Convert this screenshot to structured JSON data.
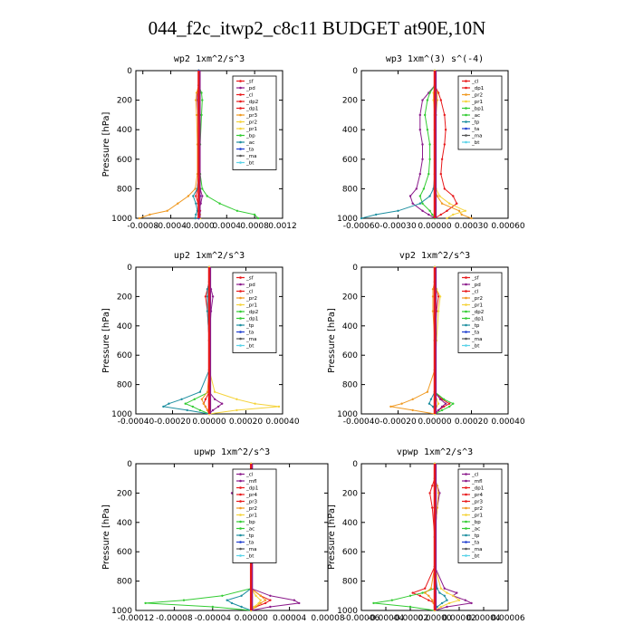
{
  "figure_title": "044_f2c_itwp2_c8c11  BUDGET at90E,10N",
  "colors": {
    "red": "#e8191b",
    "purple": "#8b1a8b",
    "orange": "#f09a22",
    "yellow": "#f5d33a",
    "green": "#33cc33",
    "teal": "#1e8fa0",
    "blue": "#1f3ed0",
    "lightblue": "#5ad3e8",
    "gray": "#555555"
  },
  "chart_data": [
    {
      "type": "line",
      "title": "wp2   1xm^2/s^3",
      "ylabel": "Pressure  [hPa]",
      "ylim": [
        1000,
        0
      ],
      "xlim": [
        -0.0009,
        0.0012
      ],
      "xticks": [
        -0.0008,
        -0.0004,
        0,
        0.0004,
        0.0008,
        0.0012
      ],
      "xtick_labels": [
        "-0.0008",
        "-0.0004",
        "-0.0000",
        "0.0004",
        "0.0008",
        "0.0012"
      ],
      "yticks": [
        0,
        200,
        400,
        600,
        800,
        1000
      ],
      "ytick_labels": [
        "0",
        "200",
        "400",
        "600",
        "800",
        "1000"
      ],
      "legend": [
        "_sf",
        "_pd",
        "_cl",
        "_dp2",
        "_dp1",
        "_pr3",
        "_pr2",
        "_pr1",
        "_bp",
        "_ac",
        "_ta",
        "_ma",
        "_bt"
      ],
      "legend_colors": [
        "red",
        "purple",
        "red",
        "red",
        "red",
        "orange",
        "yellow",
        "yellow",
        "green",
        "teal",
        "blue",
        "gray",
        "lightblue"
      ],
      "levels": [
        0,
        100,
        150,
        200,
        300,
        500,
        700,
        800,
        850,
        900,
        950,
        975,
        1000
      ],
      "series": [
        {
          "values": [
            0,
            0,
            0,
            1e-05,
            1e-05,
            1e-05,
            0,
            -2e-05,
            -4e-05,
            -1e-05,
            2e-05,
            1e-05,
            0
          ]
        },
        {
          "values": [
            0,
            0,
            -2e-05,
            -2e-05,
            -1e-05,
            0,
            0,
            2e-05,
            5e-05,
            3e-05,
            0,
            0,
            0
          ]
        },
        {
          "values": [
            0,
            0,
            4e-05,
            5e-05,
            4e-05,
            2e-05,
            2e-05,
            5e-05,
            0.00012,
            0.0003,
            0.00055,
            0.0008,
            0.00085
          ]
        },
        {
          "values": [
            0,
            0,
            -3e-05,
            -4e-05,
            -3e-05,
            -2e-05,
            -2e-05,
            -5e-05,
            -0.00015,
            -0.0003,
            -0.00045,
            -0.0007,
            -0.00085
          ]
        },
        {
          "values": [
            0,
            0,
            0,
            0,
            0,
            0,
            0,
            -2e-05,
            -8e-05,
            -4e-05,
            -2e-05,
            -4e-05,
            -5e-05
          ]
        },
        {
          "values": [
            0,
            0,
            0,
            0,
            0,
            0,
            0,
            0,
            0,
            0,
            1e-05,
            2e-05,
            2e-05
          ]
        },
        {
          "values": [
            0,
            0,
            0,
            0,
            0,
            0,
            0,
            1e-05,
            2e-05,
            0,
            0,
            0,
            0
          ]
        }
      ]
    },
    {
      "type": "line",
      "title": "wp3   1xm^(3) s^(-4)",
      "ylabel": "",
      "ylim": [
        1000,
        0
      ],
      "xlim": [
        -0.0006,
        0.0006
      ],
      "xticks": [
        -0.0006,
        -0.0003,
        0,
        0.0003,
        0.0006
      ],
      "xtick_labels": [
        "-0.00060",
        "-0.00030",
        "0.00000",
        "0.00030",
        "0.00060"
      ],
      "yticks": [
        0,
        200,
        400,
        600,
        800,
        1000
      ],
      "ytick_labels": [
        "0",
        "200",
        "400",
        "600",
        "800",
        "1000"
      ],
      "legend": [
        "_cl",
        "_dp1",
        "_pr2",
        "_pr1",
        "_bp1",
        "_ac",
        "_tp",
        "_ta",
        "_ma",
        "_bt"
      ],
      "legend_colors": [
        "red",
        "red",
        "orange",
        "yellow",
        "green",
        "green",
        "teal",
        "blue",
        "gray",
        "lightblue"
      ],
      "levels": [
        0,
        100,
        150,
        200,
        300,
        400,
        500,
        600,
        700,
        800,
        850,
        900,
        950,
        975,
        1000
      ],
      "series": [
        {
          "values": [
            0,
            0,
            3e-05,
            5e-05,
            8e-05,
            9e-05,
            8e-05,
            6e-05,
            5e-05,
            8e-05,
            0.00015,
            0.00018,
            0.0001,
            5e-05,
            0
          ]
        },
        {
          "values": [
            0,
            0,
            -5e-05,
            -0.0001,
            -0.00012,
            -0.00012,
            -0.0001,
            -0.0001,
            -0.00012,
            -0.00015,
            -0.0002,
            -0.00018,
            -0.0001,
            -5e-05,
            0
          ]
        },
        {
          "values": [
            0,
            0,
            -4e-05,
            -6e-05,
            -8e-05,
            -6e-05,
            -4e-05,
            -4e-05,
            -5e-05,
            -9e-05,
            -0.00012,
            -0.0001,
            -4e-05,
            -2e-05,
            0
          ]
        },
        {
          "values": [
            0,
            0,
            2e-05,
            2e-05,
            1e-05,
            0,
            0,
            0,
            0,
            0,
            2e-05,
            6e-05,
            0.0002,
            0.00022,
            0.0003
          ]
        },
        {
          "values": [
            0,
            0,
            0,
            0,
            0,
            0,
            0,
            0,
            0,
            -1e-05,
            -4e-05,
            -0.00012,
            -0.0003,
            -0.00048,
            -0.0006
          ]
        },
        {
          "values": [
            0,
            0,
            -1e-05,
            -1e-05,
            0,
            0,
            0,
            0,
            0,
            1e-05,
            4e-05,
            0.00012,
            0.00025,
            0.00015,
            0.0001
          ]
        }
      ]
    },
    {
      "type": "line",
      "title": "up2   1xm^2/s^3",
      "ylabel": "Pressure  [hPa]",
      "ylim": [
        1000,
        0
      ],
      "xlim": [
        -0.0004,
        0.0004
      ],
      "xticks": [
        -0.0004,
        -0.0002,
        0,
        0.0002,
        0.0004
      ],
      "xtick_labels": [
        "-0.00040",
        "-0.00020",
        "0.00000",
        "0.00020",
        "0.00040"
      ],
      "yticks": [
        0,
        200,
        400,
        600,
        800,
        1000
      ],
      "ytick_labels": [
        "0",
        "200",
        "400",
        "600",
        "800",
        "1000"
      ],
      "legend": [
        "_sf",
        "_pd",
        "_cl",
        "_pr2",
        "_pr1",
        "_dp2",
        "_dp1",
        "_tp",
        "_ta",
        "_ma",
        "_bt"
      ],
      "legend_colors": [
        "red",
        "purple",
        "red",
        "orange",
        "yellow",
        "green",
        "green",
        "teal",
        "blue",
        "gray",
        "lightblue"
      ],
      "levels": [
        0,
        100,
        150,
        200,
        300,
        500,
        700,
        850,
        900,
        930,
        950,
        975,
        1000
      ],
      "series": [
        {
          "values": [
            0,
            0,
            -1e-05,
            -2e-05,
            -1e-05,
            0,
            0,
            0,
            -2e-05,
            -3e-05,
            -2e-05,
            -1e-05,
            0
          ]
        },
        {
          "values": [
            0,
            0,
            1e-05,
            2e-05,
            1e-05,
            0,
            0,
            0,
            3e-05,
            7e-05,
            5e-05,
            2e-05,
            0
          ]
        },
        {
          "values": [
            0,
            0,
            0,
            0,
            0,
            0,
            0,
            0,
            -8e-05,
            -0.00013,
            -9e-05,
            -5e-05,
            0
          ]
        },
        {
          "values": [
            0,
            0,
            0,
            0,
            0,
            0,
            0,
            -1e-05,
            -4e-05,
            -3e-05,
            -2e-05,
            -1e-05,
            0
          ]
        },
        {
          "values": [
            0,
            0,
            -1e-05,
            -1e-05,
            -1e-05,
            0,
            0,
            -5e-05,
            -0.00015,
            -0.00022,
            -0.00025,
            -0.00012,
            0
          ]
        },
        {
          "values": [
            0,
            0,
            0,
            0,
            0,
            0,
            0,
            3e-05,
            0.00015,
            0.00025,
            0.00038,
            0.00015,
            0
          ]
        }
      ]
    },
    {
      "type": "line",
      "title": "vp2   1xm^2/s^3",
      "ylabel": "Pressure  [hPa]",
      "ylim": [
        1000,
        0
      ],
      "xlim": [
        -0.0004,
        0.0004
      ],
      "xticks": [
        -0.0004,
        -0.0002,
        0,
        0.0002,
        0.0004
      ],
      "xtick_labels": [
        "-0.00040",
        "-0.00020",
        "0.00000",
        "0.00020",
        "0.00040"
      ],
      "yticks": [
        0,
        200,
        400,
        600,
        800,
        1000
      ],
      "ytick_labels": [
        "0",
        "200",
        "400",
        "600",
        "800",
        "1000"
      ],
      "legend": [
        "_sf",
        "_pd",
        "_cl",
        "_pr2",
        "_pr1",
        "_dp2",
        "_dp1",
        "_tp",
        "_ta",
        "_ma",
        "_bt"
      ],
      "legend_colors": [
        "red",
        "purple",
        "red",
        "orange",
        "yellow",
        "green",
        "green",
        "teal",
        "blue",
        "gray",
        "lightblue"
      ],
      "levels": [
        0,
        100,
        150,
        200,
        300,
        500,
        700,
        850,
        900,
        930,
        950,
        975,
        1000
      ],
      "series": [
        {
          "values": [
            0,
            0,
            1e-05,
            2e-05,
            1e-05,
            0,
            0,
            0,
            4e-05,
            8e-05,
            5e-05,
            2e-05,
            0
          ]
        },
        {
          "values": [
            0,
            0,
            0,
            0,
            0,
            0,
            0,
            0,
            3e-05,
            6e-05,
            4e-05,
            2e-05,
            0
          ]
        },
        {
          "values": [
            0,
            0,
            0,
            0,
            0,
            0,
            0,
            0,
            5e-05,
            0.0001,
            8e-05,
            4e-05,
            0
          ]
        },
        {
          "values": [
            0,
            0,
            -1e-05,
            -1e-05,
            -1e-05,
            0,
            0,
            -4e-05,
            -0.00012,
            -0.00018,
            -0.00024,
            -0.00012,
            0
          ]
        },
        {
          "values": [
            0,
            0,
            0,
            0,
            0,
            0,
            0,
            0,
            -2e-05,
            -3e-05,
            -1e-05,
            0,
            0
          ]
        },
        {
          "values": [
            0,
            0,
            1e-05,
            3e-05,
            2e-05,
            1e-05,
            0,
            0,
            1e-05,
            2e-05,
            1e-05,
            0,
            0
          ]
        }
      ]
    },
    {
      "type": "line",
      "title": "upwp   1xm^2/s^3",
      "ylabel": "Pressure  [hPa]",
      "ylim": [
        1000,
        0
      ],
      "xlim": [
        -0.00012,
        8e-05
      ],
      "xticks": [
        -0.00012,
        -8e-05,
        -4e-05,
        0,
        4e-05,
        8e-05
      ],
      "xtick_labels": [
        "-0.00012",
        "-0.00008",
        "-0.00004",
        "0.00000",
        "0.00004",
        "0.00008"
      ],
      "yticks": [
        0,
        200,
        400,
        600,
        800,
        1000
      ],
      "ytick_labels": [
        "0",
        "200",
        "400",
        "600",
        "800",
        "1000"
      ],
      "legend": [
        "_cl",
        "_mfl",
        "_dp1",
        "_pr4",
        "_pr3",
        "_pr2",
        "_pr1",
        "_bp",
        "_ac",
        "_tp",
        "_ta",
        "_ma",
        "_bt"
      ],
      "legend_colors": [
        "purple",
        "purple",
        "red",
        "red",
        "red",
        "orange",
        "yellow",
        "green",
        "green",
        "teal",
        "blue",
        "gray",
        "lightblue"
      ],
      "levels": [
        0,
        100,
        150,
        200,
        250,
        300,
        500,
        700,
        850,
        900,
        930,
        950,
        975,
        1000
      ],
      "series": [
        {
          "values": [
            0,
            0,
            -5e-06,
            -1e-05,
            -8e-06,
            -4e-06,
            0,
            0,
            0,
            1e-05,
            2e-05,
            1.5e-05,
            5e-06,
            0
          ]
        },
        {
          "values": [
            0,
            0,
            -1e-05,
            -2e-05,
            -1.5e-05,
            -5e-06,
            0,
            0,
            0,
            2e-05,
            4.5e-05,
            5e-05,
            2e-05,
            0
          ]
        },
        {
          "values": [
            0,
            0,
            0,
            2e-06,
            0,
            0,
            0,
            0,
            0,
            -3e-05,
            -7e-05,
            -0.00011,
            -4e-05,
            0
          ]
        },
        {
          "values": [
            0,
            0,
            5e-06,
            1.2e-05,
            1e-05,
            4e-06,
            0,
            0,
            0,
            1e-05,
            1.5e-05,
            1e-05,
            5e-06,
            0
          ]
        },
        {
          "values": [
            0,
            0,
            0,
            0,
            0,
            0,
            0,
            0,
            0,
            -1e-05,
            -2.5e-05,
            -2e-05,
            -1e-05,
            0
          ]
        },
        {
          "values": [
            0,
            0,
            5e-06,
            8e-06,
            5e-06,
            2e-06,
            0,
            0,
            0,
            5e-06,
            1e-05,
            8e-06,
            3e-06,
            0
          ]
        }
      ]
    },
    {
      "type": "line",
      "title": "vpwp   1xm^2/s^3",
      "ylabel": "Pressure  [hPa]",
      "ylim": [
        1000,
        0
      ],
      "xlim": [
        -6e-05,
        6e-05
      ],
      "xticks": [
        -6e-05,
        -4e-05,
        -2e-05,
        0,
        2e-05,
        4e-05,
        6e-05
      ],
      "xtick_labels": [
        "-0.00006",
        "-0.00004",
        "-0.00002",
        "0.00000",
        "0.00002",
        "0.00004",
        "0.00006"
      ],
      "yticks": [
        0,
        200,
        400,
        600,
        800,
        1000
      ],
      "ytick_labels": [
        "0",
        "200",
        "400",
        "600",
        "800",
        "1000"
      ],
      "legend": [
        "_cl",
        "_mfl",
        "_dp1",
        "_pr4",
        "_pr3",
        "_pr2",
        "_pr1",
        "_bp",
        "_ac",
        "_tp",
        "_ta",
        "_ma",
        "_bt"
      ],
      "legend_colors": [
        "purple",
        "purple",
        "red",
        "red",
        "red",
        "orange",
        "yellow",
        "green",
        "green",
        "teal",
        "blue",
        "gray",
        "lightblue"
      ],
      "levels": [
        0,
        100,
        150,
        200,
        300,
        500,
        700,
        850,
        880,
        900,
        930,
        950,
        975,
        1000
      ],
      "series": [
        {
          "values": [
            0,
            0,
            -2e-06,
            -4e-06,
            -2e-06,
            0,
            0,
            -8e-06,
            -1.8e-05,
            -1.2e-05,
            -5e-06,
            0,
            0,
            0
          ]
        },
        {
          "values": [
            0,
            0,
            2e-06,
            4e-06,
            2e-06,
            0,
            0,
            8e-06,
            1.8e-05,
            1.5e-05,
            2.5e-05,
            3e-05,
            1e-05,
            0
          ]
        },
        {
          "values": [
            0,
            0,
            0,
            0,
            0,
            0,
            0,
            0,
            -1e-05,
            -2e-05,
            -3.5e-05,
            -5e-05,
            -2e-05,
            0
          ]
        },
        {
          "values": [
            0,
            0,
            2e-06,
            3e-06,
            2e-06,
            0,
            0,
            -3e-06,
            -8e-06,
            -5e-06,
            -2e-06,
            -1e-06,
            0,
            0
          ]
        },
        {
          "values": [
            0,
            0,
            0,
            0,
            0,
            0,
            0,
            2e-06,
            4e-06,
            8e-06,
            1e-05,
            6e-06,
            2e-06,
            0
          ]
        },
        {
          "values": [
            0,
            0,
            0,
            0,
            0,
            0,
            0,
            5e-06,
            1e-05,
            1.5e-05,
            2e-05,
            1.2e-05,
            5e-06,
            0
          ]
        }
      ]
    }
  ]
}
